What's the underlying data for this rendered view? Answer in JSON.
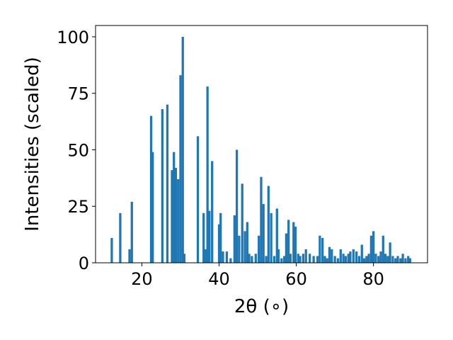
{
  "chart_data": {
    "type": "bar",
    "title": "",
    "xlabel": "2θ (∘)",
    "ylabel": "Intensities (scaled)",
    "xlim": [
      8,
      94
    ],
    "ylim": [
      0,
      105
    ],
    "x_ticks": [
      20,
      40,
      60,
      80
    ],
    "y_ticks": [
      0,
      25,
      50,
      75,
      100
    ],
    "bar_width": 0.6,
    "color": "#1f77b4",
    "x": [
      12.2,
      14.4,
      16.8,
      17.4,
      22.4,
      22.8,
      25.3,
      26.6,
      27.8,
      28.3,
      28.8,
      29.4,
      30.0,
      30.6,
      31.0,
      34.5,
      36.0,
      36.5,
      37.0,
      37.5,
      38.2,
      40.0,
      40.4,
      41.0,
      42.0,
      43.0,
      44.0,
      44.6,
      45.2,
      46.0,
      46.7,
      47.3,
      47.8,
      48.5,
      49.5,
      50.3,
      50.9,
      51.5,
      52.2,
      52.8,
      53.5,
      54.3,
      55.0,
      55.4,
      56.2,
      56.9,
      57.4,
      58.0,
      58.5,
      59.3,
      59.8,
      60.5,
      61.0,
      61.8,
      62.5,
      63.5,
      64.5,
      65.5,
      66.1,
      66.8,
      67.4,
      68.0,
      68.6,
      69.2,
      70.0,
      70.8,
      71.5,
      72.2,
      72.8,
      73.5,
      74.0,
      74.8,
      75.6,
      76.3,
      77.0,
      77.6,
      78.2,
      78.8,
      79.4,
      80.0,
      80.6,
      81.3,
      81.9,
      82.5,
      83.1,
      83.7,
      84.3,
      85.0,
      85.7,
      86.3,
      87.0,
      87.6,
      88.3,
      89.0,
      89.5
    ],
    "values": [
      11,
      22,
      6,
      27,
      65,
      49,
      68,
      70,
      41,
      49,
      42,
      37,
      83,
      100,
      4,
      56,
      22,
      6,
      78,
      23,
      45,
      17,
      22,
      5,
      5,
      2,
      21,
      50,
      12,
      35,
      14,
      18,
      4,
      3,
      4,
      12,
      38,
      26,
      3,
      34,
      22,
      3,
      24,
      6,
      2,
      3,
      13,
      19,
      4,
      18,
      16,
      4,
      3,
      4,
      6,
      4,
      3,
      3,
      12,
      11,
      3,
      2,
      7,
      6,
      3,
      2,
      6,
      4,
      3,
      4,
      5,
      6,
      5,
      3,
      8,
      2,
      3,
      4,
      12,
      14,
      4,
      3,
      5,
      12,
      4,
      3,
      9,
      3,
      2,
      3,
      2,
      4,
      2,
      3,
      2
    ]
  }
}
